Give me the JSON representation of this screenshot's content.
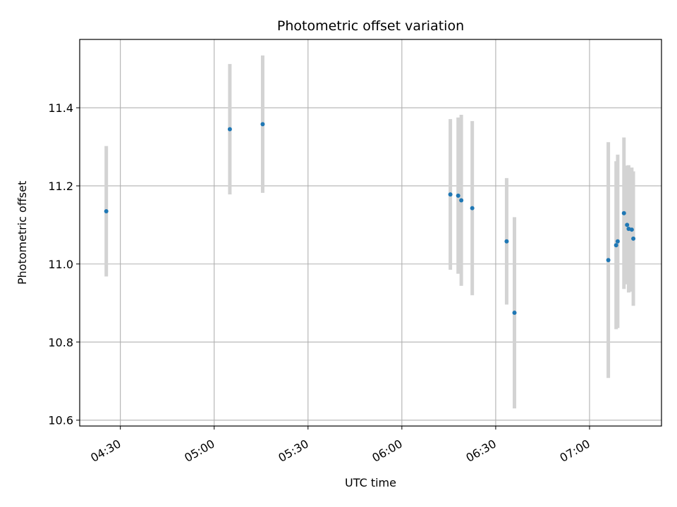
{
  "chart_data": {
    "type": "scatter",
    "title": "Photometric offset variation",
    "xlabel": "UTC time",
    "ylabel": "Photometric offset",
    "xlim": [
      "04:17",
      "07:23"
    ],
    "ylim": [
      10.585,
      11.575
    ],
    "xticks": [
      "04:30",
      "05:00",
      "05:30",
      "06:00",
      "06:30",
      "07:00"
    ],
    "yticks": [
      10.6,
      10.8,
      11.0,
      11.2,
      11.4
    ],
    "ytick_labels": [
      "10.6",
      "10.8",
      "11.0",
      "11.2",
      "11.4"
    ],
    "grid": true,
    "marker_color": "#1f77b4",
    "errorbar_color": "#d3d3d3",
    "points": [
      {
        "t": "04:25.5",
        "y": 11.135,
        "err": 0.167
      },
      {
        "t": "05:05",
        "y": 11.345,
        "err": 0.167
      },
      {
        "t": "05:15.5",
        "y": 11.358,
        "err": 0.176
      },
      {
        "t": "06:15.5",
        "y": 11.178,
        "err": 0.193
      },
      {
        "t": "06:18",
        "y": 11.175,
        "err": 0.2
      },
      {
        "t": "06:19",
        "y": 11.163,
        "err": 0.219
      },
      {
        "t": "06:22.5",
        "y": 11.143,
        "err": 0.223
      },
      {
        "t": "06:33.5",
        "y": 11.058,
        "err": 0.162
      },
      {
        "t": "06:36",
        "y": 10.875,
        "err": 0.245
      },
      {
        "t": "07:06",
        "y": 11.01,
        "err": 0.302
      },
      {
        "t": "07:08.5",
        "y": 11.048,
        "err": 0.215
      },
      {
        "t": "07:09",
        "y": 11.058,
        "err": 0.222
      },
      {
        "t": "07:11",
        "y": 11.13,
        "err": 0.194
      },
      {
        "t": "07:12",
        "y": 11.1,
        "err": 0.152
      },
      {
        "t": "07:12.5",
        "y": 11.09,
        "err": 0.163
      },
      {
        "t": "07:13.5",
        "y": 11.088,
        "err": 0.159
      },
      {
        "t": "07:14",
        "y": 11.065,
        "err": 0.172
      }
    ]
  }
}
